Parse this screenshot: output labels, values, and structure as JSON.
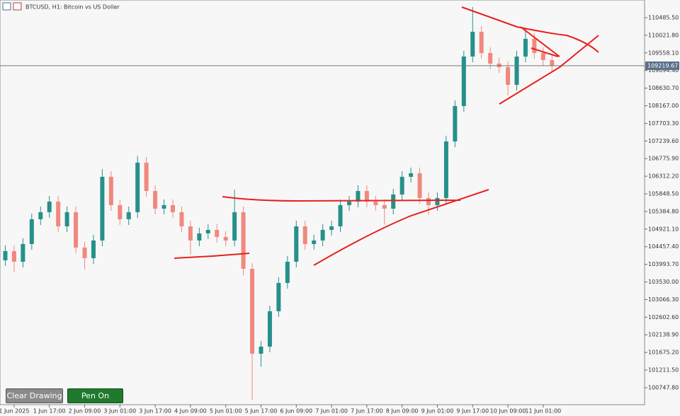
{
  "chart_data": {
    "type": "candlestick",
    "title": "BTCUSD, H1:  Bitcoin vs US Dollar",
    "open": [
      104100,
      104342,
      104062,
      104528,
      105180,
      105366,
      105645,
      104993,
      105366,
      104435,
      104155,
      104621,
      106297,
      105552,
      105180,
      105366,
      106669,
      105924,
      105459,
      105552,
      105366,
      104993,
      104621,
      104807,
      104900,
      104714,
      104621,
      105366,
      103876,
      101642,
      101828,
      102759,
      103504,
      104062,
      104993,
      104528,
      104621,
      104900,
      104993,
      105552,
      105645,
      105924,
      105645,
      105552,
      105459,
      105831,
      106297,
      106390,
      105738,
      105552,
      105738,
      107228,
      108159,
      109462,
      110114,
      109555,
      109276,
      109183,
      108717,
      109462,
      109928,
      109555,
      109369
    ],
    "high": [
      104492,
      104492,
      104678,
      105330,
      105516,
      105795,
      105795,
      105516,
      105516,
      104585,
      104771,
      106500,
      106447,
      105702,
      105516,
      106850,
      106819,
      106074,
      105702,
      105702,
      105516,
      105143,
      104957,
      105050,
      105050,
      104864,
      105961,
      105516,
      104026,
      101978,
      102909,
      103654,
      104212,
      105143,
      105143,
      104771,
      105050,
      105143,
      105702,
      105795,
      106074,
      106074,
      105795,
      105702,
      105981,
      106447,
      106540,
      106540,
      105888,
      105888,
      107378,
      108309,
      109612,
      110766,
      110264,
      109705,
      109426,
      109333,
      109612,
      110200,
      110078,
      109705,
      109519
    ],
    "low": [
      103950,
      103783,
      103912,
      104378,
      105030,
      105216,
      104843,
      104843,
      104285,
      103850,
      104005,
      104471,
      105402,
      105030,
      105030,
      105216,
      105774,
      105309,
      105309,
      105216,
      104843,
      104250,
      104471,
      104657,
      104564,
      104471,
      104471,
      103700,
      100431,
      101300,
      101678,
      102609,
      103354,
      103912,
      104378,
      104378,
      104471,
      104750,
      104843,
      105402,
      105495,
      105495,
      105402,
      105050,
      105309,
      105681,
      106147,
      105588,
      105300,
      105402,
      105588,
      107078,
      108009,
      109312,
      109405,
      109126,
      109033,
      108438,
      108567,
      109312,
      109405,
      109219,
      109070
    ],
    "close": [
      104342,
      104062,
      104528,
      105180,
      105366,
      105645,
      104993,
      105366,
      104435,
      104155,
      104621,
      106297,
      105552,
      105180,
      105366,
      106669,
      105924,
      105459,
      105552,
      105366,
      104993,
      104621,
      104807,
      104900,
      104714,
      104621,
      105366,
      103876,
      101642,
      101828,
      102759,
      103504,
      104062,
      104993,
      104528,
      104621,
      104900,
      104993,
      105552,
      105645,
      105924,
      105645,
      105552,
      105459,
      105831,
      106297,
      106390,
      105738,
      105552,
      105738,
      107228,
      108159,
      109462,
      110114,
      109555,
      109276,
      109183,
      108717,
      109462,
      109928,
      109555,
      109369,
      109220
    ],
    "up_color": "#26908a",
    "down_color": "#f0887e",
    "current_price": 109219.67,
    "xlim": [
      -0.6,
      72.5
    ],
    "xticks": [
      {
        "value": 1,
        "label": "1 Jun 2025"
      },
      {
        "value": 5,
        "label": "1 Jun 17:00"
      },
      {
        "value": 9,
        "label": "2 Jun 09:00"
      },
      {
        "value": 13,
        "label": "3 Jun 01:00"
      },
      {
        "value": 17,
        "label": "3 Jun 17:00"
      },
      {
        "value": 21,
        "label": "4 Jun 09:00"
      },
      {
        "value": 25,
        "label": "5 Jun 01:00"
      },
      {
        "value": 29,
        "label": "5 Jun 17:00"
      },
      {
        "value": 33,
        "label": "6 Jun 09:00"
      },
      {
        "value": 37,
        "label": "7 Jun 01:00"
      },
      {
        "value": 41,
        "label": "7 Jun 17:00"
      },
      {
        "value": 45,
        "label": "8 Jun 09:00"
      },
      {
        "value": 49,
        "label": "9 Jun 01:00"
      },
      {
        "value": 53,
        "label": "9 Jun 17:00"
      },
      {
        "value": 57,
        "label": "10 Jun 09:00"
      },
      {
        "value": 61,
        "label": "11 Jun 01:00"
      }
    ],
    "ylim": [
      100300,
      110950
    ],
    "yticks": [
      {
        "value": 100747.8,
        "label": "100747.80"
      },
      {
        "value": 101211.5,
        "label": "101211.50"
      },
      {
        "value": 101675.2,
        "label": "101675.20"
      },
      {
        "value": 102138.9,
        "label": "102138.90"
      },
      {
        "value": 102602.6,
        "label": "102602.60"
      },
      {
        "value": 103066.3,
        "label": "103066.30"
      },
      {
        "value": 103530,
        "label": "103530.00"
      },
      {
        "value": 103993.7,
        "label": "103993.70"
      },
      {
        "value": 104457.4,
        "label": "104457.40"
      },
      {
        "value": 104921.1,
        "label": "104921.10"
      },
      {
        "value": 105384.8,
        "label": "105384.80"
      },
      {
        "value": 105848.5,
        "label": "105848.50"
      },
      {
        "value": 106312.2,
        "label": "106312.20"
      },
      {
        "value": 106775.9,
        "label": "106775.90"
      },
      {
        "value": 107239.6,
        "label": "107239.60"
      },
      {
        "value": 107703.3,
        "label": "107703.30"
      },
      {
        "value": 108167,
        "label": "108167.00"
      },
      {
        "value": 108630.7,
        "label": "108630.70"
      },
      {
        "value": 109094.4,
        "label": "109094.40"
      },
      {
        "value": 109558.1,
        "label": "109558.10"
      },
      {
        "value": 110021.8,
        "label": "110021.80"
      },
      {
        "value": 110485.5,
        "label": "110485.50"
      }
    ]
  },
  "buttons": [
    "Clear Drawing",
    "Pen On"
  ]
}
